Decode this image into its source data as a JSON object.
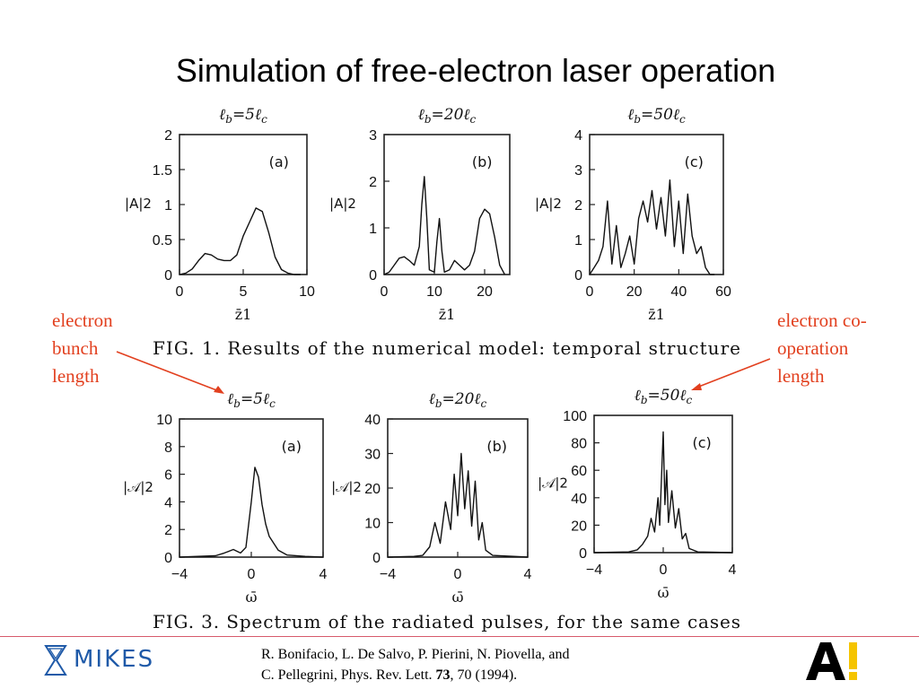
{
  "slide": {
    "title": "Simulation of free-electron laser operation"
  },
  "annotations": {
    "left": [
      "electron",
      "bunch",
      "length"
    ],
    "right": [
      "electron co-",
      "operation",
      "length"
    ],
    "accent_color": "#e2401f"
  },
  "figures": {
    "fig1_caption": "FIG. 1.  Results of the numerical model:  temporal structure",
    "fig3_caption": "FIG. 3.  Spectrum of the radiated pulses, for the same cases"
  },
  "panels": [
    {
      "heading": "ℓb=5ℓc",
      "tag": "(a)",
      "ylabel": "|A|2",
      "xlabel": "z̄1",
      "xticks": [
        "0",
        "5",
        "10"
      ],
      "yticks": [
        "0",
        "0.5",
        "1",
        "1.5",
        "2"
      ]
    },
    {
      "heading": "ℓb=20ℓc",
      "tag": "(b)",
      "ylabel": "|A|2",
      "xlabel": "z̄1",
      "xticks": [
        "0",
        "10",
        "20"
      ],
      "yticks": [
        "0",
        "1",
        "2",
        "3"
      ]
    },
    {
      "heading": "ℓb=50ℓc",
      "tag": "(c)",
      "ylabel": "|A|2",
      "xlabel": "z̄1",
      "xticks": [
        "0",
        "20",
        "40",
        "60"
      ],
      "yticks": [
        "0",
        "1",
        "2",
        "3",
        "4"
      ]
    },
    {
      "heading": "ℓb=5ℓc",
      "tag": "(a)",
      "ylabel": "|𝒜|2",
      "xlabel": "ω̄",
      "xticks": [
        "−4",
        "0",
        "4"
      ],
      "yticks": [
        "0",
        "2",
        "4",
        "6",
        "8",
        "10"
      ]
    },
    {
      "heading": "ℓb=20ℓc",
      "tag": "(b)",
      "ylabel": "|𝒜|2",
      "xlabel": "ω̄",
      "xticks": [
        "−4",
        "0",
        "4"
      ],
      "yticks": [
        "0",
        "10",
        "20",
        "30",
        "40"
      ]
    },
    {
      "heading": "ℓb=50ℓc",
      "tag": "(c)",
      "ylabel": "|𝒜|2",
      "xlabel": "ω̄",
      "xticks": [
        "−4",
        "0",
        "4"
      ],
      "yticks": [
        "0",
        "20",
        "40",
        "60",
        "80",
        "100"
      ]
    }
  ],
  "chart_data": [
    {
      "type": "line",
      "title": "ℓb=5ℓc",
      "xlabel": "z̄1",
      "ylabel": "|A|2",
      "xlim": [
        0,
        10
      ],
      "ylim": [
        0,
        2
      ],
      "x": [
        0,
        0.5,
        1,
        1.5,
        2,
        2.5,
        3,
        3.5,
        4,
        4.5,
        5,
        5.5,
        6,
        6.5,
        7,
        7.5,
        8,
        8.5,
        9,
        9.5
      ],
      "y": [
        0,
        0.02,
        0.08,
        0.2,
        0.3,
        0.28,
        0.22,
        0.2,
        0.2,
        0.28,
        0.55,
        0.75,
        0.95,
        0.9,
        0.6,
        0.25,
        0.07,
        0.02,
        0,
        0
      ]
    },
    {
      "type": "line",
      "title": "ℓb=20ℓc",
      "xlabel": "z̄1",
      "ylabel": "|A|2",
      "xlim": [
        0,
        25
      ],
      "ylim": [
        0,
        3
      ],
      "x": [
        0,
        1,
        2,
        3,
        4,
        5,
        6,
        7,
        7.5,
        8,
        8.5,
        9,
        10,
        10.5,
        11,
        11.5,
        12,
        13,
        14,
        15,
        16,
        17,
        18,
        19,
        20,
        21,
        22,
        23,
        24
      ],
      "y": [
        0,
        0.05,
        0.2,
        0.35,
        0.38,
        0.3,
        0.2,
        0.6,
        1.5,
        2.1,
        1.2,
        0.1,
        0.05,
        0.7,
        1.2,
        0.5,
        0.05,
        0.1,
        0.3,
        0.2,
        0.1,
        0.2,
        0.5,
        1.2,
        1.4,
        1.3,
        0.8,
        0.2,
        0
      ]
    },
    {
      "type": "line",
      "title": "ℓb=50ℓc",
      "xlabel": "z̄1",
      "ylabel": "|A|2",
      "xlim": [
        0,
        60
      ],
      "ylim": [
        0,
        4
      ],
      "x": [
        0,
        2,
        4,
        6,
        8,
        10,
        12,
        14,
        16,
        18,
        20,
        22,
        24,
        26,
        28,
        30,
        32,
        34,
        36,
        38,
        40,
        42,
        44,
        46,
        48,
        50,
        52,
        54,
        56
      ],
      "y": [
        0,
        0.2,
        0.4,
        0.8,
        2.1,
        0.3,
        1.4,
        0.2,
        0.6,
        1.1,
        0.3,
        1.6,
        2.1,
        1.5,
        2.4,
        1.3,
        2.2,
        1.1,
        2.7,
        0.8,
        2.1,
        0.6,
        2.3,
        1.1,
        0.6,
        0.8,
        0.2,
        0,
        0
      ]
    },
    {
      "type": "line",
      "title": "ℓb=5ℓc",
      "xlabel": "ω̄",
      "ylabel": "|𝒜|2",
      "xlim": [
        -4,
        4
      ],
      "ylim": [
        0,
        10
      ],
      "x": [
        -4,
        -3,
        -2,
        -1.5,
        -1,
        -0.6,
        -0.3,
        0,
        0.2,
        0.4,
        0.6,
        0.8,
        1,
        1.5,
        2,
        3,
        4
      ],
      "y": [
        0,
        0.05,
        0.1,
        0.3,
        0.55,
        0.3,
        0.7,
        4,
        6.5,
        5.8,
        3.8,
        2.4,
        1.5,
        0.5,
        0.15,
        0.05,
        0
      ]
    },
    {
      "type": "line",
      "title": "ℓb=20ℓc",
      "xlabel": "ω̄",
      "ylabel": "|𝒜|2",
      "xlim": [
        -4,
        4
      ],
      "ylim": [
        0,
        40
      ],
      "x": [
        -4,
        -2.5,
        -2,
        -1.6,
        -1.3,
        -1,
        -0.7,
        -0.4,
        -0.2,
        0,
        0.2,
        0.4,
        0.6,
        0.8,
        1,
        1.2,
        1.4,
        1.6,
        2,
        4
      ],
      "y": [
        0,
        0.2,
        0.5,
        3,
        10,
        4,
        16,
        8,
        24,
        12,
        30,
        14,
        25,
        9,
        22,
        5,
        10,
        2,
        0.5,
        0
      ]
    },
    {
      "type": "line",
      "title": "ℓb=50ℓc",
      "xlabel": "ω̄",
      "ylabel": "|𝒜|2",
      "xlim": [
        -4,
        4
      ],
      "ylim": [
        0,
        100
      ],
      "x": [
        -4,
        -2,
        -1.5,
        -1.2,
        -0.9,
        -0.7,
        -0.5,
        -0.3,
        -0.2,
        -0.1,
        0,
        0.1,
        0.2,
        0.3,
        0.5,
        0.7,
        0.9,
        1.1,
        1.3,
        1.5,
        2,
        4
      ],
      "y": [
        0,
        0.5,
        2,
        6,
        12,
        25,
        15,
        40,
        20,
        55,
        88,
        35,
        60,
        22,
        45,
        18,
        32,
        10,
        14,
        3,
        0.5,
        0
      ]
    }
  ],
  "citation": {
    "line1": "R. Bonifacio, L. De Salvo, P. Pierini, N. Piovella, and",
    "line2_pre": "C. Pellegrini, Phys. Rev. Lett. ",
    "line2_volume": "73",
    "line2_post": ", 70 (1994)."
  },
  "logos": {
    "left": "MIKES",
    "left_color": "#1f5aa8",
    "right_color_mark": "#f5c400"
  }
}
